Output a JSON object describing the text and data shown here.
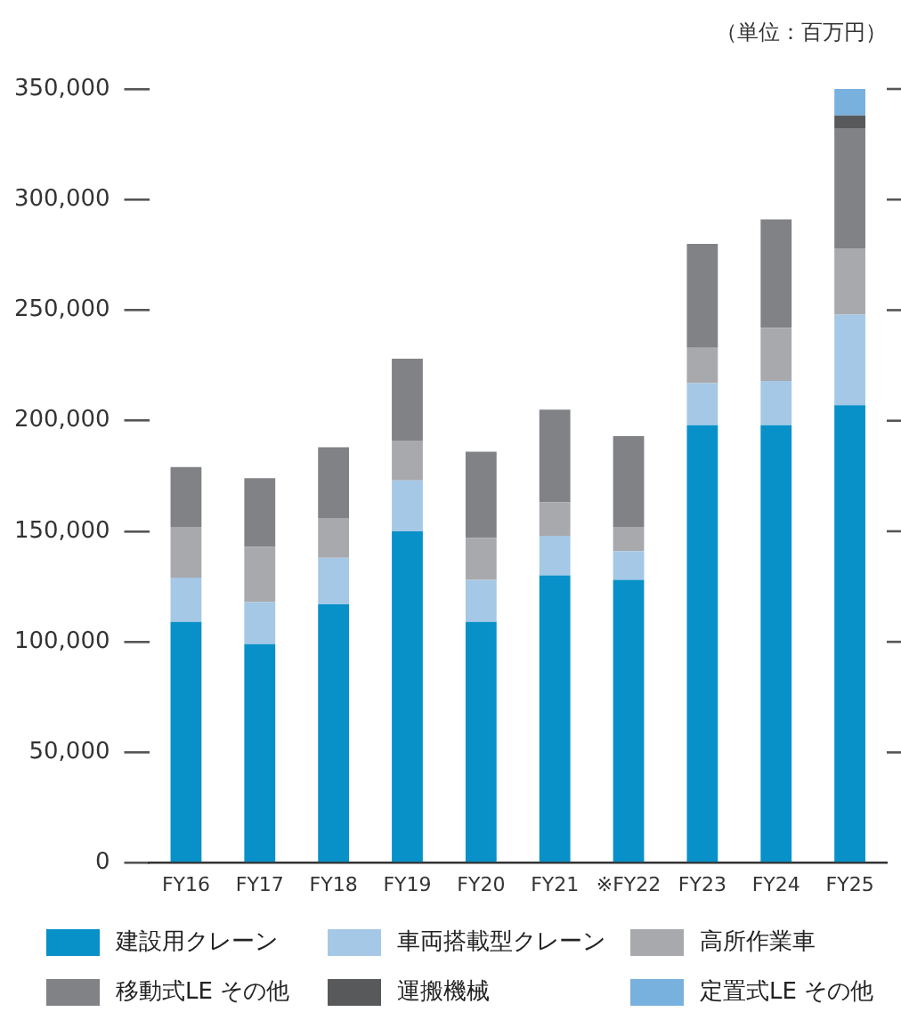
{
  "chart_data": {
    "type": "bar",
    "stacked": true,
    "annotations": [
      "（単位：百万円）"
    ],
    "categories": [
      "FY16",
      "FY17",
      "FY18",
      "FY19",
      "FY20",
      "FY21",
      "※FY22",
      "FY23",
      "FY24",
      "FY25"
    ],
    "series": [
      {
        "name": "建設用クレーン",
        "color": "#0890c8",
        "values": [
          109000,
          99000,
          117000,
          150000,
          109000,
          130000,
          128000,
          198000,
          198000,
          207000
        ]
      },
      {
        "name": "車両搭載型クレーン",
        "color": "#a4c8e6",
        "values": [
          20000,
          19000,
          21000,
          23000,
          19000,
          18000,
          13000,
          19000,
          20000,
          41000
        ]
      },
      {
        "name": "高所作業車",
        "color": "#a8a9ad",
        "values": [
          23000,
          25000,
          18000,
          18000,
          19000,
          15000,
          11000,
          16000,
          24000,
          30000
        ]
      },
      {
        "name": "移動式LE その他",
        "color": "#818286",
        "values": [
          27000,
          31000,
          32000,
          37000,
          39000,
          42000,
          41000,
          47000,
          49000,
          54000
        ]
      },
      {
        "name": "運搬機械",
        "color": "#58595b",
        "values": [
          null,
          null,
          null,
          null,
          null,
          null,
          null,
          null,
          null,
          6000
        ]
      },
      {
        "name": "定置式LE その他",
        "color": "#78b0de",
        "values": [
          null,
          null,
          null,
          null,
          null,
          null,
          null,
          null,
          null,
          12000
        ]
      }
    ],
    "ylim": [
      0,
      350000
    ],
    "yticks": [
      0,
      {
        "value": 50000,
        "label": "50,000"
      },
      {
        "value": 100000,
        "label": "100,000"
      },
      {
        "value": 150000,
        "label": "150,000"
      },
      {
        "value": 200000,
        "label": "200,000"
      },
      {
        "value": 250000,
        "label": "250,000"
      },
      {
        "value": 300000,
        "label": "300,000"
      },
      {
        "value": 350000,
        "label": "350,000"
      }
    ],
    "grid": false,
    "legend": "bottom"
  }
}
